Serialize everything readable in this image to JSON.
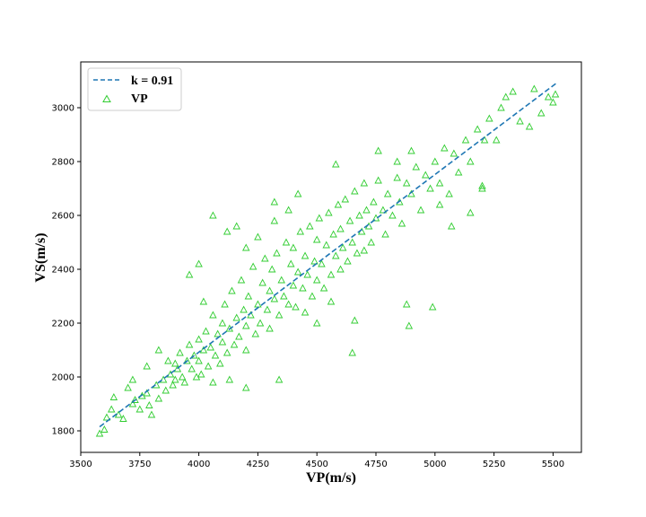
{
  "chart_data": {
    "type": "scatter",
    "title": "",
    "xlabel": "VP(m/s)",
    "ylabel": "VS(m/s)",
    "xlim": [
      3500,
      5620
    ],
    "ylim": [
      1720,
      3170
    ],
    "xticks": [
      3500,
      3750,
      4000,
      4250,
      4500,
      4750,
      5000,
      5250,
      5500
    ],
    "yticks": [
      1800,
      2000,
      2200,
      2400,
      2600,
      2800,
      3000
    ],
    "grid": false,
    "legend_position": "top-left",
    "series": [
      {
        "name": "k = 0.91",
        "kind": "fit-line",
        "style": "dashed",
        "color": "#1f77b4",
        "x": [
          3580,
          5520
        ],
        "y": [
          1815,
          3095
        ]
      },
      {
        "name": "VP",
        "kind": "scatter",
        "marker": "triangle-open",
        "color": "#32cd32",
        "points": [
          [
            3580,
            1790
          ],
          [
            3600,
            1805
          ],
          [
            3610,
            1850
          ],
          [
            3630,
            1880
          ],
          [
            3640,
            1925
          ],
          [
            3660,
            1860
          ],
          [
            3680,
            1845
          ],
          [
            3700,
            1960
          ],
          [
            3720,
            1900
          ],
          [
            3730,
            1915
          ],
          [
            3750,
            1880
          ],
          [
            3760,
            1930
          ],
          [
            3780,
            1940
          ],
          [
            3790,
            1895
          ],
          [
            3800,
            1860
          ],
          [
            3820,
            1970
          ],
          [
            3830,
            1920
          ],
          [
            3850,
            1990
          ],
          [
            3860,
            1950
          ],
          [
            3870,
            2060
          ],
          [
            3880,
            2010
          ],
          [
            3890,
            1970
          ],
          [
            3900,
            2050
          ],
          [
            3900,
            1990
          ],
          [
            3910,
            2030
          ],
          [
            3920,
            2090
          ],
          [
            3930,
            2000
          ],
          [
            3940,
            1980
          ],
          [
            3950,
            2060
          ],
          [
            3960,
            2120
          ],
          [
            3970,
            2030
          ],
          [
            3980,
            2080
          ],
          [
            3990,
            2000
          ],
          [
            4000,
            2140
          ],
          [
            4000,
            2060
          ],
          [
            4010,
            2010
          ],
          [
            4020,
            2100
          ],
          [
            4030,
            2170
          ],
          [
            4040,
            2040
          ],
          [
            4050,
            2110
          ],
          [
            4060,
            2230
          ],
          [
            4070,
            2080
          ],
          [
            4080,
            2160
          ],
          [
            4090,
            2050
          ],
          [
            4100,
            2200
          ],
          [
            4100,
            2130
          ],
          [
            4110,
            2270
          ],
          [
            4120,
            2090
          ],
          [
            4130,
            2180
          ],
          [
            4140,
            2320
          ],
          [
            4150,
            2120
          ],
          [
            4160,
            2220
          ],
          [
            4170,
            2150
          ],
          [
            4180,
            2360
          ],
          [
            4190,
            2250
          ],
          [
            4200,
            2100
          ],
          [
            4200,
            2190
          ],
          [
            4210,
            2300
          ],
          [
            4220,
            2230
          ],
          [
            4230,
            2410
          ],
          [
            4240,
            2160
          ],
          [
            4250,
            2270
          ],
          [
            4260,
            2200
          ],
          [
            4270,
            2350
          ],
          [
            4280,
            2440
          ],
          [
            4290,
            2250
          ],
          [
            4300,
            2320
          ],
          [
            4300,
            2180
          ],
          [
            4310,
            2400
          ],
          [
            4320,
            2290
          ],
          [
            4330,
            2460
          ],
          [
            4340,
            2230
          ],
          [
            4350,
            2360
          ],
          [
            4360,
            2300
          ],
          [
            4370,
            2500
          ],
          [
            4380,
            2270
          ],
          [
            4390,
            2420
          ],
          [
            4400,
            2340
          ],
          [
            4400,
            2480
          ],
          [
            4410,
            2260
          ],
          [
            4420,
            2390
          ],
          [
            4430,
            2540
          ],
          [
            4440,
            2330
          ],
          [
            4450,
            2450
          ],
          [
            4460,
            2380
          ],
          [
            4470,
            2560
          ],
          [
            4480,
            2300
          ],
          [
            4490,
            2430
          ],
          [
            4500,
            2510
          ],
          [
            4500,
            2360
          ],
          [
            4510,
            2590
          ],
          [
            4520,
            2420
          ],
          [
            4530,
            2330
          ],
          [
            4540,
            2490
          ],
          [
            4550,
            2610
          ],
          [
            4560,
            2380
          ],
          [
            4570,
            2530
          ],
          [
            4580,
            2450
          ],
          [
            4590,
            2640
          ],
          [
            4600,
            2400
          ],
          [
            4600,
            2550
          ],
          [
            4610,
            2480
          ],
          [
            4620,
            2660
          ],
          [
            4630,
            2430
          ],
          [
            4640,
            2580
          ],
          [
            4650,
            2500
          ],
          [
            4660,
            2690
          ],
          [
            4670,
            2460
          ],
          [
            4680,
            2600
          ],
          [
            4690,
            2540
          ],
          [
            4700,
            2720
          ],
          [
            4700,
            2470
          ],
          [
            4710,
            2620
          ],
          [
            4720,
            2560
          ],
          [
            4730,
            2500
          ],
          [
            4740,
            2650
          ],
          [
            4750,
            2590
          ],
          [
            4760,
            2730
          ],
          [
            4780,
            2620
          ],
          [
            4790,
            2530
          ],
          [
            4800,
            2680
          ],
          [
            4820,
            2600
          ],
          [
            4840,
            2740
          ],
          [
            4850,
            2650
          ],
          [
            4860,
            2570
          ],
          [
            4880,
            2720
          ],
          [
            4900,
            2680
          ],
          [
            4920,
            2780
          ],
          [
            4940,
            2620
          ],
          [
            4960,
            2750
          ],
          [
            4980,
            2700
          ],
          [
            5000,
            2800
          ],
          [
            5020,
            2720
          ],
          [
            5040,
            2850
          ],
          [
            5060,
            2680
          ],
          [
            5080,
            2830
          ],
          [
            5100,
            2760
          ],
          [
            5130,
            2880
          ],
          [
            5150,
            2800
          ],
          [
            5180,
            2920
          ],
          [
            5200,
            2710
          ],
          [
            5210,
            2880
          ],
          [
            5230,
            2960
          ],
          [
            5260,
            2880
          ],
          [
            5280,
            3000
          ],
          [
            5300,
            3040
          ],
          [
            5330,
            3060
          ],
          [
            5360,
            2950
          ],
          [
            5400,
            2930
          ],
          [
            5420,
            3070
          ],
          [
            5450,
            2980
          ],
          [
            5480,
            3040
          ],
          [
            5500,
            3020
          ],
          [
            5510,
            3050
          ],
          [
            4060,
            2600
          ],
          [
            4120,
            2540
          ],
          [
            4160,
            2560
          ],
          [
            4200,
            2480
          ],
          [
            4250,
            2520
          ],
          [
            4320,
            2580
          ],
          [
            4380,
            2620
          ],
          [
            3960,
            2380
          ],
          [
            4000,
            2420
          ],
          [
            4020,
            2280
          ],
          [
            4660,
            2210
          ],
          [
            4650,
            2090
          ],
          [
            4880,
            2270
          ],
          [
            4890,
            2190
          ],
          [
            4990,
            2260
          ],
          [
            4340,
            1990
          ],
          [
            4200,
            1960
          ],
          [
            4320,
            2650
          ],
          [
            4420,
            2680
          ],
          [
            4580,
            2790
          ],
          [
            4760,
            2840
          ],
          [
            4840,
            2800
          ],
          [
            4900,
            2840
          ],
          [
            5020,
            2640
          ],
          [
            5070,
            2560
          ],
          [
            5150,
            2610
          ],
          [
            5200,
            2700
          ],
          [
            3780,
            2040
          ],
          [
            3830,
            2100
          ],
          [
            3720,
            1990
          ],
          [
            4130,
            1990
          ],
          [
            4060,
            1980
          ],
          [
            4450,
            2240
          ],
          [
            4500,
            2200
          ],
          [
            4560,
            2280
          ]
        ]
      }
    ]
  }
}
